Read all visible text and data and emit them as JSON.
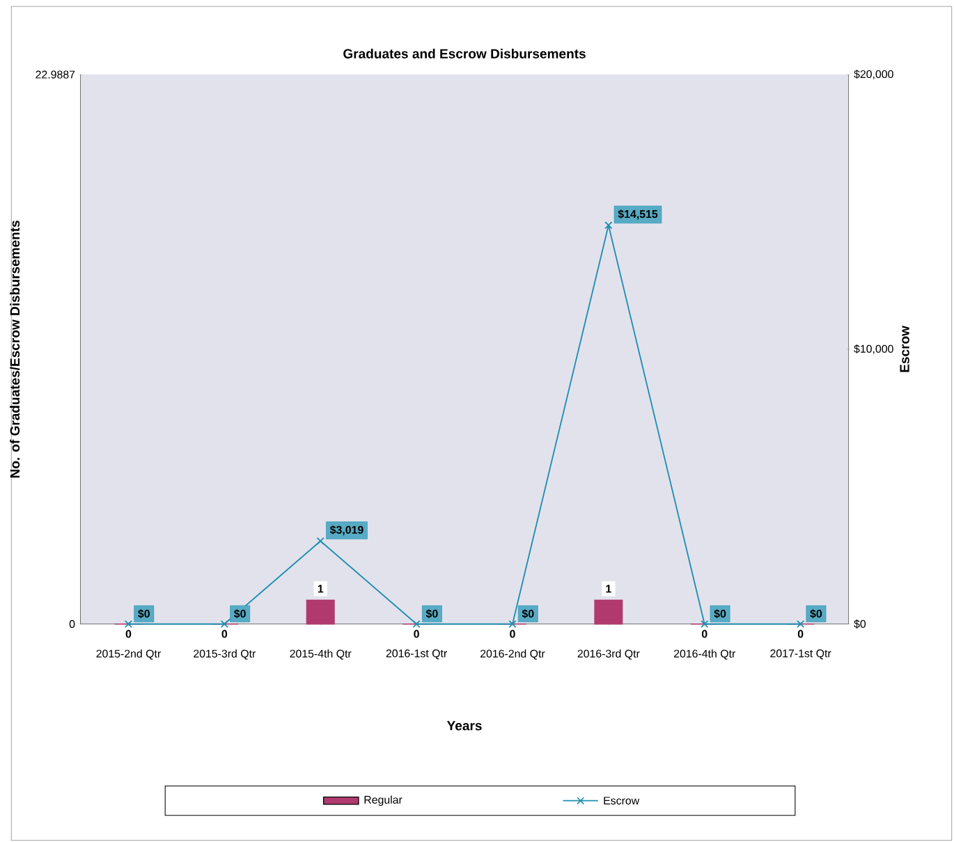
{
  "chart_data": {
    "type": "bar",
    "title": "Graduates and Escrow Disbursements",
    "xlabel": "Years",
    "ylabel": "No. of Graduates/Escrow Disbursements",
    "y2label": "Escrow",
    "categories": [
      "2015-2nd Qtr",
      "2015-3rd Qtr",
      "2015-4th Qtr",
      "2016-1st Qtr",
      "2016-2nd Qtr",
      "2016-3rd Qtr",
      "2016-4th Qtr",
      "2017-1st Qtr"
    ],
    "series": [
      {
        "name": "Regular",
        "color": "#b03a6e",
        "values": [
          0,
          0,
          1,
          0,
          0,
          1,
          0,
          0
        ],
        "value_labels": [
          "0",
          "0",
          "1",
          "0",
          "0",
          "1",
          "0",
          "0"
        ]
      },
      {
        "name": "Escrow",
        "type": "line",
        "axis": "y2",
        "color": "#1f8fb0",
        "marker": "cross",
        "values": [
          0,
          0,
          3019,
          0,
          0,
          14515,
          0,
          0
        ],
        "value_labels": [
          "$0",
          "$0",
          "$3,019",
          "$0",
          "$0",
          "$14,515",
          "$0",
          "$0"
        ]
      }
    ],
    "ylim": [
      0,
      22.9887
    ],
    "yticks": [
      0,
      22.9887
    ],
    "y2lim": [
      0,
      20000
    ],
    "y2ticks": [
      {
        "value": 0,
        "label": "$0"
      },
      {
        "value": 10000,
        "label": "$10,000"
      },
      {
        "value": 20000,
        "label": "$20,000"
      }
    ],
    "legend": "bottom",
    "grid": false
  }
}
